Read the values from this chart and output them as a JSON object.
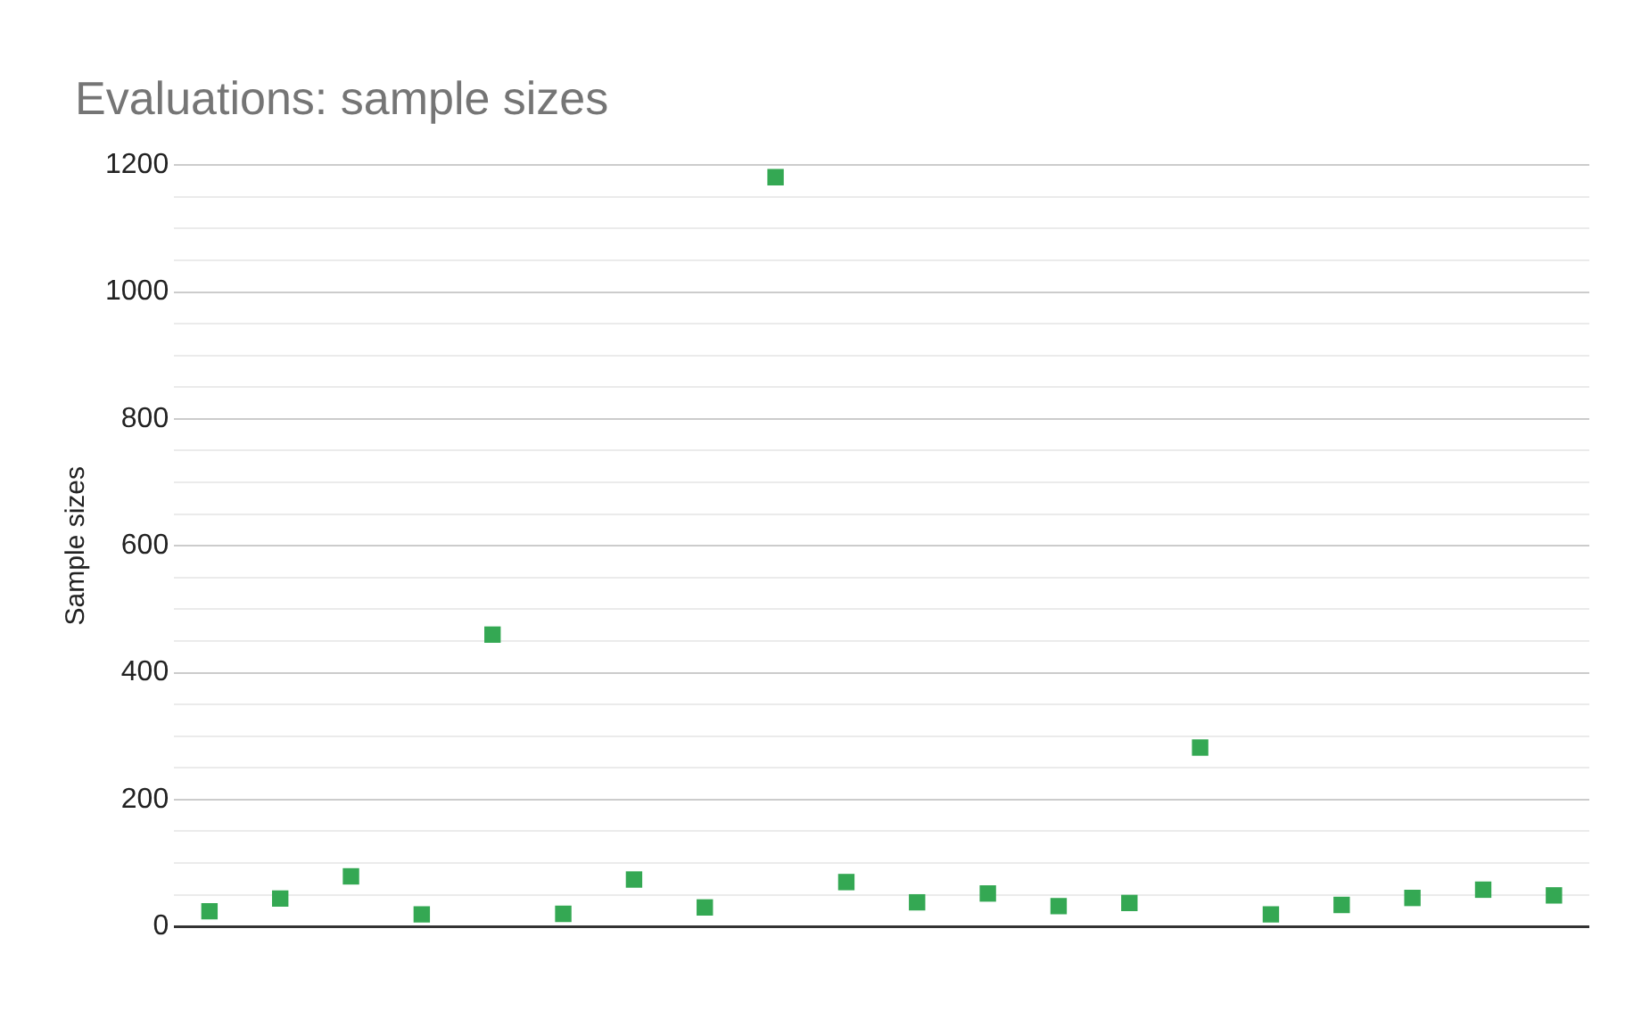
{
  "chart_data": {
    "type": "scatter",
    "title": "Evaluations: sample sizes",
    "ylabel": "Sample sizes",
    "categories": [
      null,
      null,
      null,
      null,
      null,
      null,
      null,
      null,
      null,
      null,
      null,
      null,
      null,
      null,
      null,
      null,
      null,
      null,
      null,
      null
    ],
    "series": [
      {
        "color": "#34a853",
        "values": [
          24,
          44,
          79,
          19,
          460,
          20,
          74,
          30,
          1181,
          70,
          38,
          52,
          32,
          37,
          282,
          19,
          34,
          45,
          58,
          49
        ]
      }
    ],
    "ylim": [
      0,
      1200
    ],
    "yticks": [
      0,
      {
        "value": 50,
        "label": null
      },
      {
        "value": 100,
        "label": null
      },
      {
        "value": 150,
        "label": null
      },
      200,
      {
        "value": 250,
        "label": null
      },
      {
        "value": 300,
        "label": null
      },
      {
        "value": 350,
        "label": null
      },
      400,
      {
        "value": 450,
        "label": null
      },
      {
        "value": 500,
        "label": null
      },
      {
        "value": 550,
        "label": null
      },
      600,
      {
        "value": 650,
        "label": null
      },
      {
        "value": 700,
        "label": null
      },
      {
        "value": 750,
        "label": null
      },
      800,
      {
        "value": 850,
        "label": null
      },
      {
        "value": 900,
        "label": null
      },
      {
        "value": 950,
        "label": null
      },
      1000,
      {
        "value": 1050,
        "label": null
      },
      {
        "value": 1100,
        "label": null
      },
      {
        "value": 1150,
        "label": null
      },
      1200
    ],
    "grid": "y",
    "legend": false,
    "marker": "square"
  }
}
